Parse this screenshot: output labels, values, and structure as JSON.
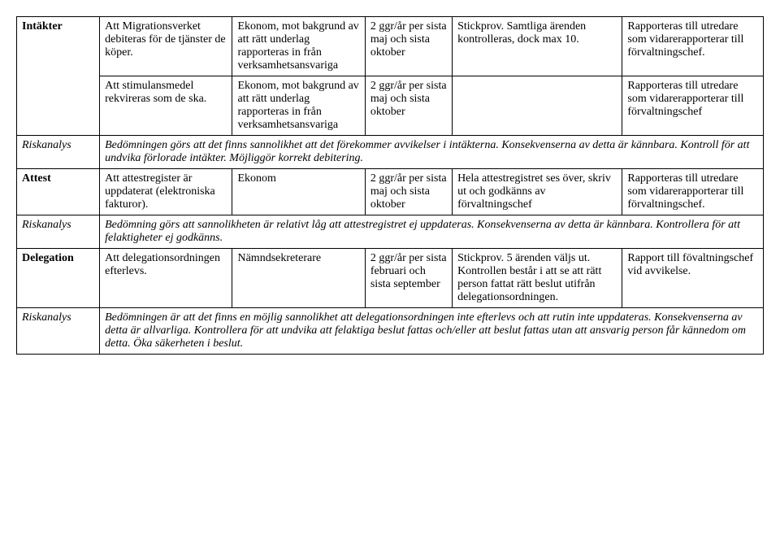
{
  "rows": {
    "r1": {
      "c0": "Intäkter",
      "c1": "Att Migrationsverket debiteras för de tjänster de köper.",
      "c2": "Ekonom, mot bakgrund av att rätt underlag rapporteras in från verksamhetsansvariga",
      "c3": "2 ggr/år per sista maj och sista oktober",
      "c4": "Stickprov. Samtliga ärenden kontrolleras, dock max 10.",
      "c5": "Rapporteras till utredare som vidarerapporterar till förvaltningschef."
    },
    "r2": {
      "c1": "Att stimulansmedel rekvireras som de ska.",
      "c2": "Ekonom, mot bakgrund av att rätt underlag rapporteras in från verksamhetsansvariga",
      "c3": "2 ggr/år per sista maj och sista oktober",
      "c4": "",
      "c5": "Rapporteras till utredare som vidarerapporterar till förvaltningschef"
    },
    "r3": {
      "c0": "Riskanalys",
      "text": "Bedömningen görs att det finns sannolikhet att det förekommer avvikelser i intäkterna. Konsekvenserna av detta är kännbara. Kontroll för att undvika förlorade intäkter. Möjliggör korrekt debitering."
    },
    "r4": {
      "c0": "Attest",
      "c1": "Att attestregister är uppdaterat (elektroniska fakturor).",
      "c2": "Ekonom",
      "c3": "2 ggr/år per sista maj och sista oktober",
      "c4": "Hela attestregistret ses över, skriv ut och godkänns av förvaltningschef",
      "c5": "Rapporteras till utredare som vidarerapporterar till förvaltningschef."
    },
    "r5": {
      "c0": "Riskanalys",
      "text": "Bedömning görs att sannolikheten är relativt låg att attestregistret ej uppdateras. Konsekvenserna av detta är kännbara. Kontrollera för att felaktigheter ej godkänns."
    },
    "r6": {
      "c0": "Delegation",
      "c1": "Att delegationsordningen efterlevs.",
      "c2": "Nämndsekreterare",
      "c3": "2 ggr/år per sista februari och sista september",
      "c4": "Stickprov. 5 ärenden väljs ut. Kontrollen består i att se att rätt person fattat rätt beslut utifrån delegationsordningen.",
      "c5": "Rapport till fövaltningschef vid avvikelse."
    },
    "r7": {
      "c0": "Riskanalys",
      "text": "Bedömningen är att det finns en möjlig sannolikhet att delegationsordningen inte efterlevs och att rutin inte uppdateras. Konsekvenserna av detta är allvarliga. Kontrollera för att undvika att felaktiga beslut fattas och/eller att beslut fattas utan att ansvarig person får kännedom om detta. Öka säkerheten i beslut."
    }
  }
}
